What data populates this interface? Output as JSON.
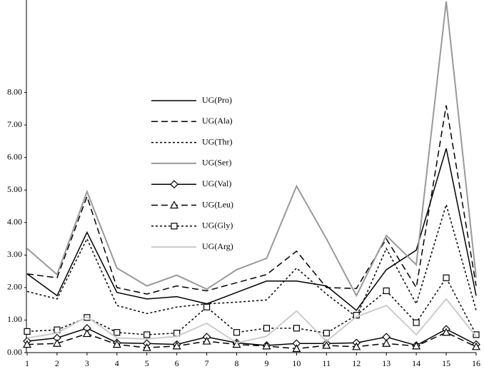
{
  "chart_data": {
    "type": "line",
    "categories": [
      "1",
      "2",
      "3",
      "4",
      "5",
      "6",
      "7",
      "8",
      "9",
      "10",
      "11",
      "12",
      "13",
      "14",
      "15",
      "16"
    ],
    "ylim": [
      0,
      10.8
    ],
    "yticks": [
      {
        "value": 0,
        "label": "0.00"
      },
      {
        "value": 1,
        "label": "1.00"
      },
      {
        "value": 2,
        "label": "2.00"
      },
      {
        "value": 3,
        "label": "3.00"
      },
      {
        "value": 4,
        "label": "4.00"
      },
      {
        "value": 5,
        "label": "5.00"
      },
      {
        "value": 6,
        "label": "6.00"
      },
      {
        "value": 7,
        "label": "7.00"
      },
      {
        "value": 8,
        "label": "8.00"
      }
    ],
    "legend": "upper-left",
    "series": [
      {
        "name": "UG(Pro)",
        "color": "#000000",
        "dash": "solid",
        "marker": "none",
        "values": [
          2.42,
          1.75,
          3.7,
          1.85,
          1.65,
          1.72,
          1.5,
          1.85,
          2.2,
          2.2,
          2.05,
          1.3,
          2.55,
          3.15,
          6.28,
          1.75
        ]
      },
      {
        "name": "UG(Ala)",
        "color": "#000000",
        "dash": "dashed",
        "marker": "none",
        "values": [
          2.42,
          2.3,
          4.8,
          2.0,
          1.8,
          2.05,
          1.9,
          2.15,
          2.4,
          3.12,
          2.0,
          1.97,
          3.5,
          2.0,
          7.6,
          2.05
        ]
      },
      {
        "name": "UG(Thr)",
        "color": "#000000",
        "dash": "dotted",
        "marker": "none",
        "values": [
          1.88,
          1.65,
          3.5,
          1.45,
          1.2,
          1.4,
          1.5,
          1.55,
          1.62,
          2.6,
          1.8,
          1.1,
          3.2,
          1.5,
          4.55,
          1.3
        ]
      },
      {
        "name": "UG(Ser)",
        "color": "#999999",
        "dash": "solid",
        "marker": "none",
        "values": [
          3.2,
          2.4,
          4.95,
          2.6,
          2.05,
          2.38,
          1.95,
          2.55,
          2.9,
          5.12,
          3.5,
          1.75,
          3.6,
          2.7,
          10.8,
          2.3
        ]
      },
      {
        "name": "UG(Val)",
        "color": "#000000",
        "dash": "solid",
        "marker": "diamond",
        "values": [
          0.35,
          0.45,
          0.75,
          0.3,
          0.28,
          0.25,
          0.48,
          0.3,
          0.22,
          0.28,
          0.28,
          0.3,
          0.48,
          0.22,
          0.72,
          0.25
        ]
      },
      {
        "name": "UG(Leu)",
        "color": "#000000",
        "dash": "dashed",
        "marker": "triangle",
        "values": [
          0.25,
          0.28,
          0.58,
          0.25,
          0.15,
          0.2,
          0.35,
          0.25,
          0.2,
          0.12,
          0.22,
          0.18,
          0.28,
          0.2,
          0.62,
          0.18
        ]
      },
      {
        "name": "UG(Gly)",
        "color": "#000000",
        "dash": "dotted",
        "marker": "square",
        "values": [
          0.65,
          0.7,
          1.08,
          0.62,
          0.55,
          0.6,
          1.4,
          0.62,
          0.75,
          0.75,
          0.6,
          1.15,
          1.9,
          0.92,
          2.3,
          0.55
        ]
      },
      {
        "name": "UG(Arg)",
        "color": "#cccccc",
        "dash": "solid",
        "marker": "none",
        "values": [
          0.45,
          0.6,
          1.1,
          0.45,
          0.42,
          0.5,
          0.9,
          0.3,
          0.5,
          1.28,
          0.35,
          1.1,
          1.45,
          0.55,
          1.65,
          0.5
        ]
      }
    ]
  }
}
